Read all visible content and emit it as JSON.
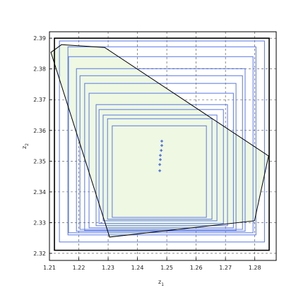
{
  "chart_data": {
    "type": "polytope",
    "xlabel": {
      "base": "z",
      "sub": "1"
    },
    "ylabel": {
      "base": "z",
      "sub": "2"
    },
    "xlim": [
      1.21,
      1.2873
    ],
    "ylim": [
      2.3177,
      2.3921
    ],
    "xticks": [
      1.21,
      1.22,
      1.23,
      1.24,
      1.25,
      1.26,
      1.27,
      1.28
    ],
    "yticks": [
      2.32,
      2.33,
      2.34,
      2.35,
      2.36,
      2.37,
      2.38,
      2.39
    ],
    "grid": true,
    "bounds": {
      "color": "#000000",
      "x": [
        1.2117,
        1.2849
      ],
      "y": [
        2.321,
        2.39
      ]
    },
    "region": {
      "color": "#000000",
      "fill": "#eef8e2",
      "x": [
        1.2105,
        1.2141,
        1.2288,
        1.2847,
        1.2799,
        1.2305
      ],
      "y": [
        2.3854,
        2.3879,
        2.387,
        2.3517,
        2.3306,
        2.3253
      ]
    },
    "boxes": {
      "color": "#5a78e6",
      "inner_fill": "#eef8e2",
      "x": [
        [
          1.2134,
          1.2833
        ],
        [
          1.2163,
          1.2804
        ],
        [
          1.2165,
          1.2794
        ],
        [
          1.2192,
          1.2767
        ],
        [
          1.2204,
          1.2758
        ],
        [
          1.222,
          1.2736
        ],
        [
          1.2235,
          1.2727
        ],
        [
          1.2259,
          1.2707
        ],
        [
          1.2269,
          1.2693
        ],
        [
          1.2283,
          1.2671
        ],
        [
          1.2298,
          1.2654
        ],
        [
          1.2314,
          1.2635
        ]
      ],
      "y": [
        [
          2.3237,
          2.3891
        ],
        [
          2.326,
          2.3872
        ],
        [
          2.3267,
          2.384
        ],
        [
          2.3272,
          2.3801
        ],
        [
          2.3278,
          2.3778
        ],
        [
          2.3274,
          2.3753
        ],
        [
          2.3283,
          2.3721
        ],
        [
          2.329,
          2.3684
        ],
        [
          2.3297,
          2.3668
        ],
        [
          2.3306,
          2.365
        ],
        [
          2.3311,
          2.3638
        ],
        [
          2.3317,
          2.3615
        ]
      ]
    },
    "points": {
      "color": "#2a4fd8",
      "x": [
        1.2483,
        1.2483,
        1.2481,
        1.2478,
        1.2478,
        1.2476,
        1.2476
      ],
      "y": [
        2.3565,
        2.3551,
        2.3535,
        2.3519,
        2.3505,
        2.3489,
        2.3469
      ]
    }
  }
}
